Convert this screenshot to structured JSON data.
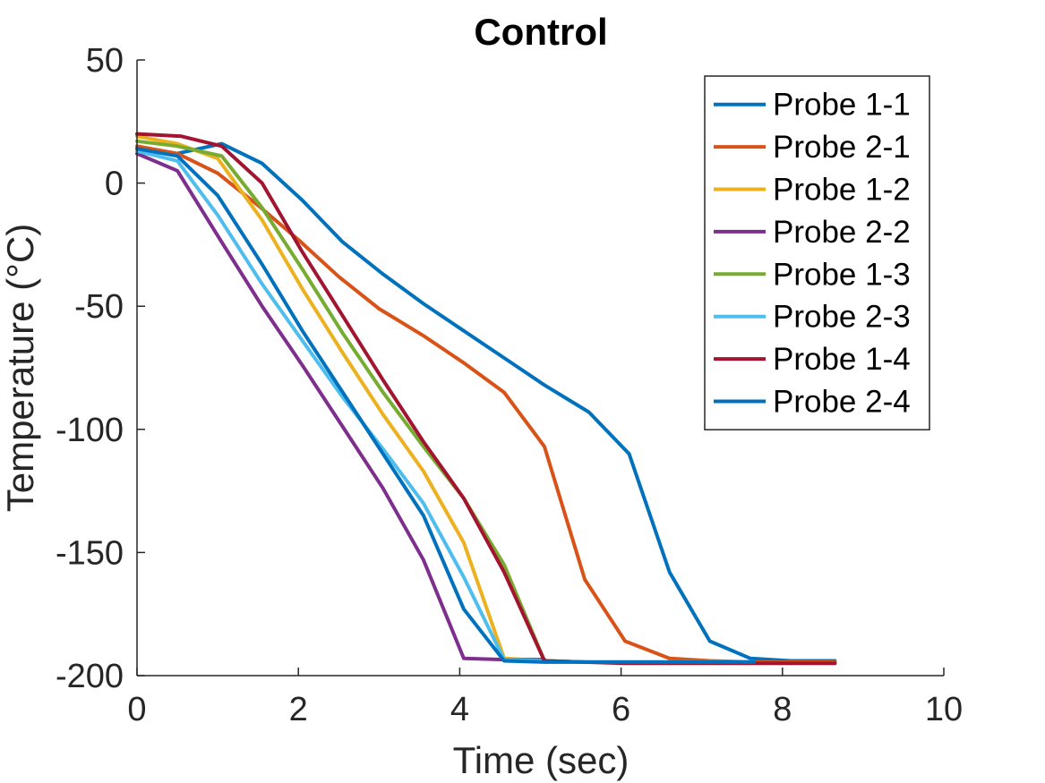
{
  "chart_data": {
    "type": "line",
    "title": "Control",
    "xlabel": "Time (sec)",
    "ylabel": "Temperature (°C)",
    "xlim": [
      0,
      10
    ],
    "ylim": [
      -200,
      50
    ],
    "xticks": [
      0,
      2,
      4,
      6,
      8,
      10
    ],
    "yticks": [
      -200,
      -150,
      -100,
      -50,
      0,
      50
    ],
    "grid": false,
    "legend_position": "top-right",
    "series": [
      {
        "name": "Probe 1-1",
        "color": "#0072BD",
        "x": [
          0,
          0.5,
          1.05,
          1.55,
          2.05,
          2.55,
          3.05,
          3.55,
          4.05,
          4.55,
          5.05,
          5.6,
          6.1,
          6.6,
          7.1,
          7.6,
          8.1,
          8.65
        ],
        "y": [
          14,
          12,
          16,
          8,
          -7,
          -24,
          -37,
          -49,
          -60,
          -71,
          -82,
          -93,
          -110,
          -158,
          -186,
          -193,
          -194,
          -194
        ]
      },
      {
        "name": "Probe 2-1",
        "color": "#D95319",
        "x": [
          0,
          0.5,
          1.0,
          1.5,
          2.0,
          2.5,
          3.0,
          3.55,
          4.05,
          4.55,
          5.05,
          5.55,
          6.05,
          6.6,
          7.1,
          7.65,
          8.65
        ],
        "y": [
          15,
          12,
          4,
          -9,
          -23,
          -38,
          -51,
          -62,
          -73,
          -85,
          -107,
          -161,
          -186,
          -193,
          -194,
          -194.5,
          -194.5
        ]
      },
      {
        "name": "Probe 1-2",
        "color": "#EDB120",
        "x": [
          0,
          0.5,
          1.0,
          1.55,
          2.05,
          2.55,
          3.05,
          3.55,
          4.05,
          4.55,
          5.05,
          5.55,
          6.05,
          6.6,
          7.1,
          7.65
        ],
        "y": [
          19,
          16,
          10,
          -15,
          -43,
          -69,
          -94,
          -117,
          -146,
          -193,
          -194,
          -194.5,
          -194.5,
          -194.5,
          -194.5,
          -194.5
        ]
      },
      {
        "name": "Probe 2-2",
        "color": "#7E2F8E",
        "x": [
          0,
          0.5,
          1.05,
          1.55,
          2.05,
          2.55,
          3.05,
          3.55,
          4.05,
          4.55,
          5.05
        ],
        "y": [
          12,
          5,
          -24,
          -50,
          -74,
          -99,
          -124,
          -153,
          -193,
          -193.5,
          -193.5
        ]
      },
      {
        "name": "Probe 1-3",
        "color": "#77AC30",
        "x": [
          0,
          0.5,
          1.05,
          1.55,
          2.05,
          2.55,
          3.05,
          3.55,
          4.05,
          4.55,
          5.05,
          5.55,
          6.05,
          6.6,
          7.1,
          7.65
        ],
        "y": [
          17,
          15,
          11,
          -10,
          -35,
          -61,
          -85,
          -107,
          -128,
          -155,
          -194,
          -194.5,
          -194.5,
          -194.5,
          -194.5,
          -194.5
        ]
      },
      {
        "name": "Probe 2-3",
        "color": "#4DBEEE",
        "x": [
          0,
          0.5,
          1.0,
          1.55,
          2.05,
          2.55,
          3.05,
          3.55,
          4.05,
          4.55,
          5.05,
          5.55,
          6.05,
          6.6,
          7.1,
          7.65
        ],
        "y": [
          13,
          9,
          -13,
          -41,
          -64,
          -87,
          -108,
          -130,
          -160,
          -193.5,
          -194,
          -194.5,
          -194.5,
          -194.5,
          -194.5,
          -194.5
        ]
      },
      {
        "name": "Probe 1-4",
        "color": "#A2142F",
        "x": [
          0,
          0.55,
          1.05,
          1.55,
          2.05,
          2.55,
          3.05,
          3.55,
          4.05,
          4.55,
          5.05,
          5.55,
          6.05,
          6.6,
          7.1,
          7.65,
          8.15,
          8.65
        ],
        "y": [
          20,
          19,
          15,
          0,
          -28,
          -54,
          -80,
          -105,
          -128,
          -158,
          -194,
          -194.5,
          -195,
          -195,
          -195,
          -195,
          -195,
          -195
        ]
      },
      {
        "name": "Probe 2-4",
        "color": "#0072BD",
        "x": [
          0,
          0.5,
          1.0,
          1.55,
          2.05,
          2.55,
          3.05,
          3.55,
          4.05,
          4.55,
          5.05,
          5.55,
          6.05,
          6.6,
          7.1,
          7.65
        ],
        "y": [
          14,
          11,
          -5,
          -33,
          -60,
          -85,
          -110,
          -135,
          -173,
          -194,
          -194.5,
          -194.5,
          -194.5,
          -194.5,
          -194.5,
          -194.5
        ]
      }
    ]
  }
}
